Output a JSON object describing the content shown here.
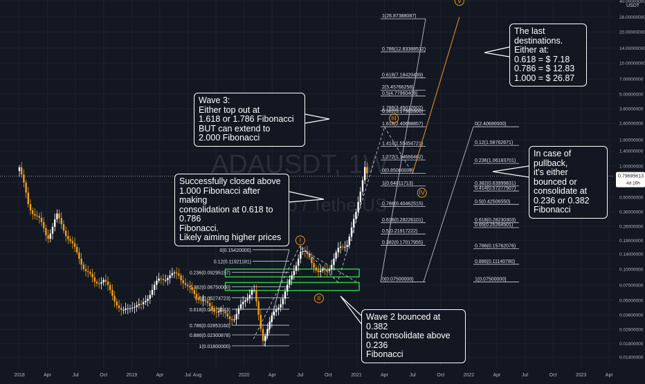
{
  "chart_data": {
    "type": "candlestick",
    "symbol_watermark": "ADAUSDT, 1W",
    "name_watermark": "Cardano / TetherUS",
    "currency_label": "USDT",
    "scale": "log",
    "last_price": "0.79695613",
    "countdown": "4d 16h",
    "x_ticks": [
      "2018",
      "Apr",
      "Jul",
      "Oct",
      "2019",
      "Apr",
      "Jul",
      "Aug",
      "2020",
      "Apr",
      "Jul",
      "Oct",
      "2021",
      "Apr",
      "Jul",
      "Oct",
      "2022",
      "Apr",
      "Jul",
      "Oct",
      "2023",
      "Apr"
    ],
    "y_ticks": [
      "40.00000000",
      "28.00000000",
      "20.00000000",
      "14.00000000",
      "10.00000000",
      "7.00000000",
      "5.00000000",
      "3.60000000",
      "2.60000000",
      "1.80000000",
      "1.40000000",
      "1.00000000",
      "0.70000000",
      "0.50000000",
      "0.36000000",
      "0.26000000",
      "0.19000000",
      "0.14000000",
      "0.10000000",
      "0.07000000",
      "0.05000000",
      "0.03600000",
      "0.02600000",
      "0.01900000",
      "0.01400000"
    ],
    "price_series": [
      {
        "date": "2018-01",
        "price": 1.0
      },
      {
        "date": "2018-01",
        "price": 0.72
      },
      {
        "date": "2018-02",
        "price": 0.4
      },
      {
        "date": "2018-03",
        "price": 0.32
      },
      {
        "date": "2018-04",
        "price": 0.2
      },
      {
        "date": "2018-05",
        "price": 0.33
      },
      {
        "date": "2018-06",
        "price": 0.22
      },
      {
        "date": "2018-07",
        "price": 0.15
      },
      {
        "date": "2018-08",
        "price": 0.1
      },
      {
        "date": "2018-09",
        "price": 0.075
      },
      {
        "date": "2018-10",
        "price": 0.078
      },
      {
        "date": "2018-11",
        "price": 0.055
      },
      {
        "date": "2018-12",
        "price": 0.037
      },
      {
        "date": "2019-01",
        "price": 0.045
      },
      {
        "date": "2019-02",
        "price": 0.043
      },
      {
        "date": "2019-03",
        "price": 0.06
      },
      {
        "date": "2019-04",
        "price": 0.08
      },
      {
        "date": "2019-05",
        "price": 0.085
      },
      {
        "date": "2019-06",
        "price": 0.09
      },
      {
        "date": "2019-07",
        "price": 0.065
      },
      {
        "date": "2019-08",
        "price": 0.055
      },
      {
        "date": "2019-09",
        "price": 0.045
      },
      {
        "date": "2019-10",
        "price": 0.04
      },
      {
        "date": "2019-11",
        "price": 0.036
      },
      {
        "date": "2019-12",
        "price": 0.033
      },
      {
        "date": "2020-01",
        "price": 0.05
      },
      {
        "date": "2020-02",
        "price": 0.065
      },
      {
        "date": "2020-03",
        "price": 0.021
      },
      {
        "date": "2020-04",
        "price": 0.034
      },
      {
        "date": "2020-05",
        "price": 0.05
      },
      {
        "date": "2020-06",
        "price": 0.08
      },
      {
        "date": "2020-07",
        "price": 0.15
      },
      {
        "date": "2020-08",
        "price": 0.13
      },
      {
        "date": "2020-09",
        "price": 0.09
      },
      {
        "date": "2020-10",
        "price": 0.1
      },
      {
        "date": "2020-11",
        "price": 0.15
      },
      {
        "date": "2020-12",
        "price": 0.18
      },
      {
        "date": "2021-01",
        "price": 0.35
      },
      {
        "date": "2021-02",
        "price": 1.1
      },
      {
        "date": "2021-02",
        "price": 0.8
      }
    ],
    "elliott_labels": [
      {
        "label": "I",
        "date": "2020-07",
        "price": 0.19
      },
      {
        "label": "II",
        "date": "2020-09",
        "price": 0.052
      },
      {
        "label": "III",
        "date": "2021-05",
        "price": 2.9
      },
      {
        "label": "IV",
        "date": "2021-08",
        "price": 0.55
      },
      {
        "label": "V",
        "date": "2021-12",
        "price": 40
      }
    ],
    "fib_sets": [
      {
        "name": "wave1-retracement",
        "levels": [
          {
            "text": "0.236(0.09295157)",
            "price": 0.09295157
          },
          {
            "text": "0.382(0.06750000)",
            "price": 0.0675
          },
          {
            "text": "0.5(0.05274723)",
            "price": 0.05274723
          },
          {
            "text": "0.618(0.04079543)",
            "price": 0.04079543
          },
          {
            "text": "0.786(0.02853160)",
            "price": 0.0285316
          },
          {
            "text": "0.886(0.02300878)",
            "price": 0.02300878
          },
          {
            "text": "1(0.01800000)",
            "price": 0.018
          }
        ]
      },
      {
        "name": "wave1-extension",
        "levels": [
          {
            "text": "0(0.15420000)",
            "price": 0.1542
          },
          {
            "text": "0.12(0.11921181)",
            "price": 0.11921181
          }
        ]
      },
      {
        "name": "wave3-extension",
        "levels": [
          {
            "text": "1(26.87388087)",
            "price": 26.87388087
          },
          {
            "text": "0.786(12.83388532)",
            "price": 12.83388532
          },
          {
            "text": "0.618(7.18420439)",
            "price": 7.18420439
          },
          {
            "text": "2(5.45766258)",
            "price": 5.45766258
          },
          {
            "text": "0.5(4.77960408)",
            "price": 4.77960408
          },
          {
            "text": "1.786(3.45012602)",
            "price": 3.45012602
          },
          {
            "text": "0.382(3.17982806)",
            "price": 3.17982806
          },
          {
            "text": "1.618(2.40698857)",
            "price": 2.40698857
          },
          {
            "text": "1.414(1.55454721)",
            "price": 1.55454721
          },
          {
            "text": "1.272(1.14666462)",
            "price": 1.14666462
          },
          {
            "text": "0(0.85000000)",
            "price": 0.85
          },
          {
            "text": "1(0.64011713)",
            "price": 0.64011713
          },
          {
            "text": "0.786(0.40462515)",
            "price": 0.40462515
          },
          {
            "text": "0.618(0.28226101)",
            "price": 0.28226101
          },
          {
            "text": "0.5(0.21917222)",
            "price": 0.21917222
          },
          {
            "text": "0.382(0.17017955)",
            "price": 0.17017955
          },
          {
            "text": "0(0.07500000)",
            "price": 0.075
          }
        ]
      },
      {
        "name": "wave4-retracement",
        "levels": [
          {
            "text": "0(2.40690000)",
            "price": 2.4069
          },
          {
            "text": "0.12(1.58762671)",
            "price": 1.58762671
          },
          {
            "text": "0.236(1.06183701)",
            "price": 1.06183701
          },
          {
            "text": "0.382(0.63999831)",
            "price": 0.63999831
          },
          {
            "text": "0.414(0.57277507)",
            "price": 0.57277507
          },
          {
            "text": "0.5(0.42506550)",
            "price": 0.4250655
          },
          {
            "text": "0.618(0.28230303)",
            "price": 0.28230303
          },
          {
            "text": "0.65(0.25264501)",
            "price": 0.25264501
          },
          {
            "text": "0.786(0.15762076)",
            "price": 0.15762076
          },
          {
            "text": "0.886(0.11140780)",
            "price": 0.1114078
          },
          {
            "text": "1(0.07500000)",
            "price": 0.075
          }
        ]
      }
    ],
    "support_zones": [
      {
        "from": "2019-11",
        "to": "2021-01",
        "low": 0.084,
        "high": 0.1
      },
      {
        "from": "2019-11",
        "to": "2021-01",
        "low": 0.062,
        "high": 0.074
      }
    ]
  },
  "annotations": {
    "wave3": "Wave 3:\nEither top out at\n1.618 or 1.786 Fibonacci\nBUT can extend to\n2.000 Fibonacci",
    "closed": "Successfully closed above\n1.000 Fibonacci after making\nconsolidation at 0.618 to 0.786\nFibonacci.\nLikely aiming higher prices",
    "destinations": "The last destinations.\nEither at:\n0.618 = $ 7.18\n0.786 = $ 12.83\n1.000 = $ 26.87",
    "pullback": "In case of pullback,\nit's either bounced or\nconsolidate at\n0.236 or 0.382\nFibonacci",
    "wave2": "Wave 2 bounced at 0.382\nbut consolidate above 0.236\nFibonacci"
  },
  "colors": {
    "background": "#131722",
    "grid": "#1e222d",
    "bull": "#ffffff",
    "bear": "#f0a020",
    "fib_line": "#d1d4dc",
    "elliott": "#f59a23",
    "zone": "#2ecc40"
  }
}
